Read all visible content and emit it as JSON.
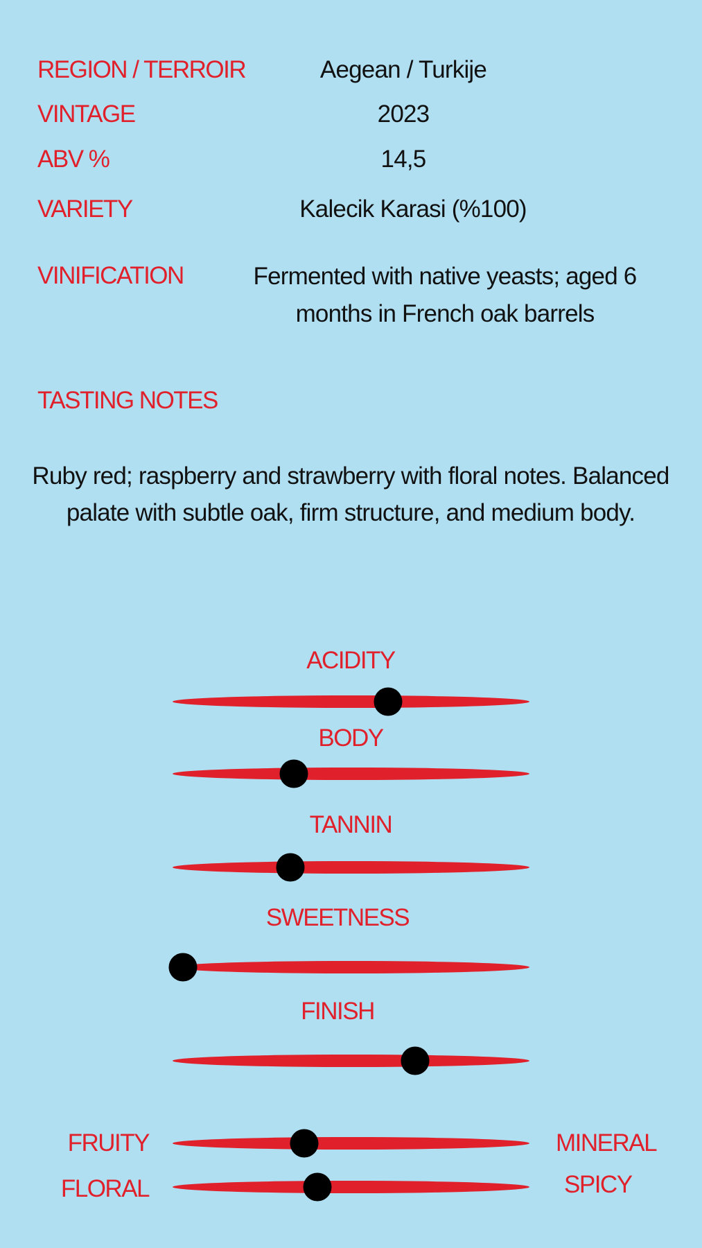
{
  "colors": {
    "background": "#b1dff2",
    "accent": "#e0202a",
    "text": "#111111",
    "marker": "#000000"
  },
  "specs": [
    {
      "label": "REGION / TERROIR",
      "value": "Aegean / Turkije"
    },
    {
      "label": "VINTAGE",
      "value": "2023"
    },
    {
      "label": "ABV %",
      "value": "14,5"
    },
    {
      "label": "VARIETY",
      "value": "Kalecik Karasi (%100)"
    },
    {
      "label": "VINIFICATION",
      "value": "Fermented with native yeasts; aged 6 months in French oak barrels"
    }
  ],
  "tasting": {
    "heading": "TASTING NOTES",
    "text": "Ruby red; raspberry and strawberry with floral notes. Balanced palate with subtle oak, firm structure, and medium body."
  },
  "scales": [
    {
      "label": "ACIDITY",
      "level": 0.61
    },
    {
      "label": "BODY",
      "level": 0.33
    },
    {
      "label": "TANNIN",
      "level": 0.32
    },
    {
      "label": "SWEETNESS",
      "level": 0.0
    },
    {
      "label": "FINISH",
      "level": 0.69
    }
  ],
  "axes": [
    {
      "left": "FRUITY",
      "right": "MINERAL",
      "level": 0.36
    },
    {
      "left": "FLORAL",
      "right": "SPICY",
      "level": 0.4
    }
  ]
}
